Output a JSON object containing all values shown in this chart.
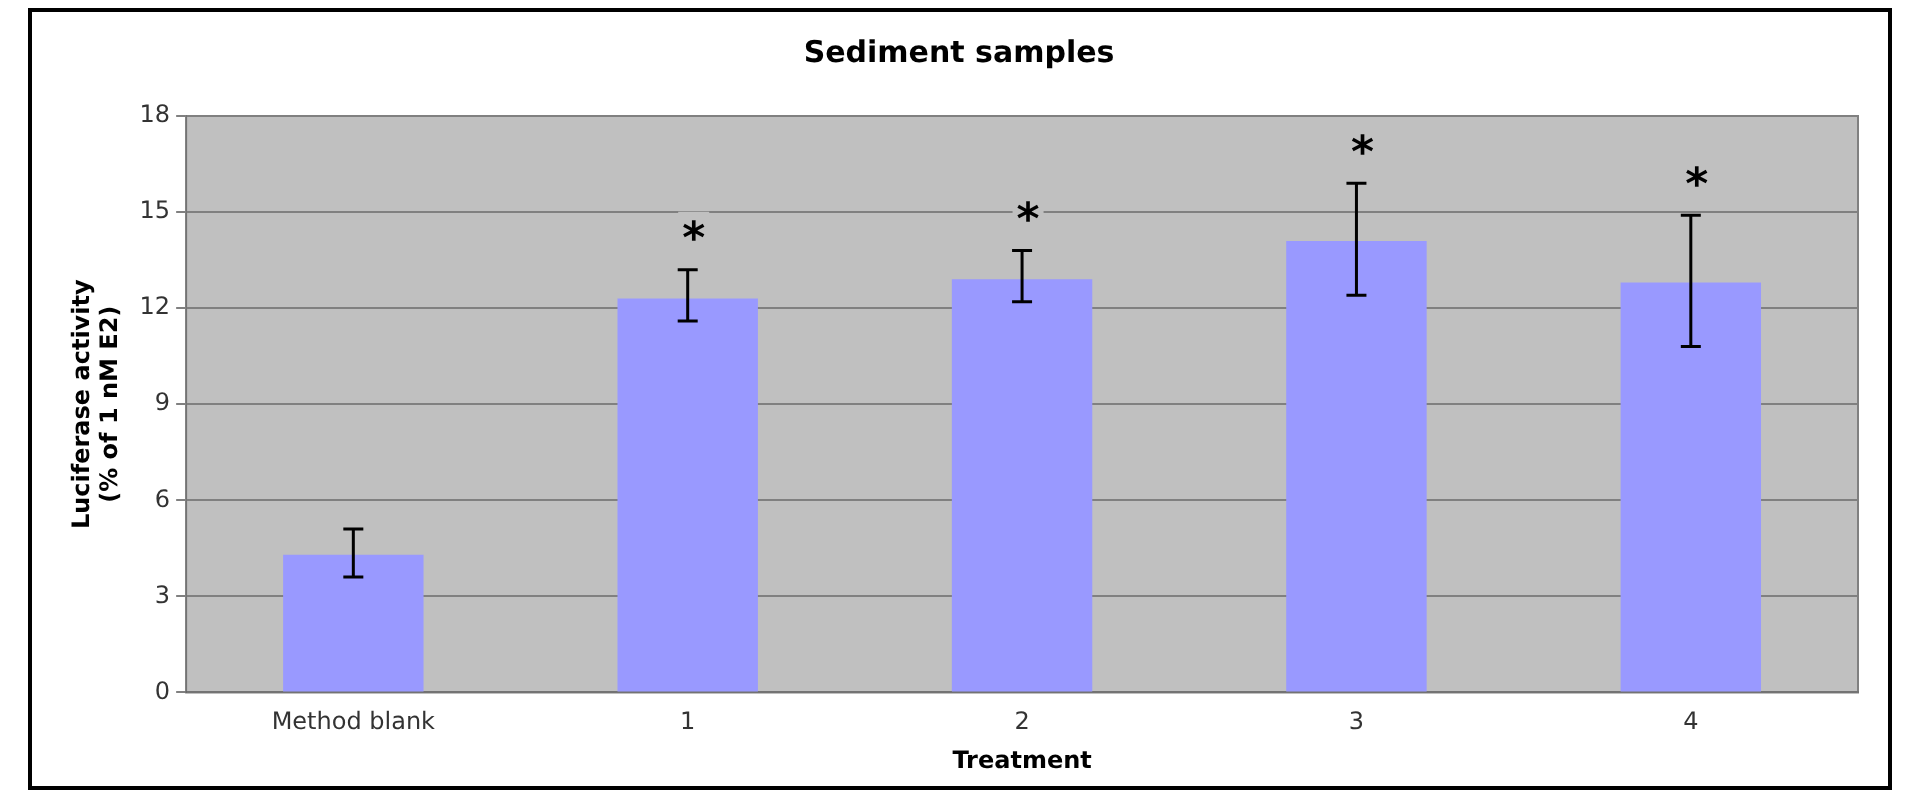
{
  "chart_data": {
    "type": "bar",
    "title": "Sediment samples",
    "xlabel": "Treatment",
    "ylabel": "Luciferase activity\n(% of 1 nM E2)",
    "categories": [
      "Method blank",
      "1",
      "2",
      "3",
      "4"
    ],
    "values": [
      4.3,
      12.3,
      12.9,
      14.1,
      12.8
    ],
    "errors": [
      [
        3.6,
        5.1
      ],
      [
        11.6,
        13.2
      ],
      [
        12.2,
        13.8
      ],
      [
        12.4,
        15.9
      ],
      [
        10.8,
        14.9
      ]
    ],
    "color": "#9999ff",
    "ylim": [
      0,
      18
    ],
    "yticks": [
      0,
      3,
      6,
      9,
      12,
      15,
      18
    ],
    "grid": "y",
    "annotations": [
      {
        "text": "*",
        "x": "1",
        "y": 13.2
      },
      {
        "text": "*",
        "x": "2",
        "y": 13.8
      },
      {
        "text": "*",
        "x": "3",
        "y": 15.9
      },
      {
        "text": "*",
        "x": "4",
        "y": 14.9
      }
    ]
  }
}
